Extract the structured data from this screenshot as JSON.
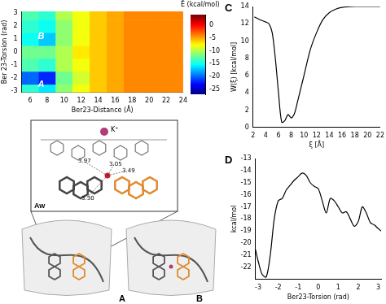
{
  "chart_data": [
    {
      "type": "heatmap",
      "x_label": "Ber23-Distance (Å)",
      "y_label": "Ber 23-Torsion (rad)",
      "xlim": [
        5,
        24
      ],
      "xticks": [
        6,
        8,
        10,
        12,
        14,
        16,
        18,
        20,
        22,
        24
      ],
      "ylim": [
        -3.14,
        3.14
      ],
      "yticks": [
        -3,
        -2,
        -1,
        0,
        1,
        2,
        3
      ],
      "x": [
        6,
        8,
        10,
        12,
        14,
        16,
        18,
        20,
        22,
        24
      ],
      "y": [
        -3,
        -2,
        -1,
        0,
        1,
        2,
        3
      ],
      "cells": [
        [
          -14,
          -16,
          -11,
          -8,
          -6,
          -5,
          -4,
          -4,
          -4,
          -4
        ],
        [
          -20,
          -22,
          -12,
          -9,
          -6,
          -5,
          -4,
          -4,
          -4,
          -4
        ],
        [
          -13,
          -14,
          -10,
          -8,
          -6,
          -5,
          -4,
          -4,
          -4,
          -4
        ],
        [
          -12,
          -12,
          -10,
          -7,
          -6,
          -5,
          -4,
          -4,
          -4,
          -4
        ],
        [
          -15,
          -17,
          -11,
          -8,
          -6,
          -5,
          -4,
          -4,
          -4,
          -4
        ],
        [
          -14,
          -15,
          -11,
          -8,
          -6,
          -5,
          -4,
          -4,
          -4,
          -4
        ],
        [
          -13,
          -14,
          -10,
          -8,
          -6,
          -5,
          -4,
          -4,
          -4,
          -4
        ]
      ],
      "colorbar": {
        "label": "Ē (kcal/mol)",
        "range": [
          -27,
          4
        ],
        "ticks": [
          0,
          -5,
          -10,
          -15,
          -20,
          -25
        ]
      },
      "annotations": [
        {
          "text": "A",
          "x": 7.3,
          "y": -2.5
        },
        {
          "text": "B",
          "x": 7.3,
          "y": 1.2
        }
      ]
    },
    {
      "type": "line",
      "panel": "C",
      "x_label": "ξ [Å]",
      "y_label": "W(ξ) [kcal/mol]",
      "color": "#000000",
      "xlim": [
        2,
        22
      ],
      "xticks": [
        2,
        4,
        6,
        8,
        10,
        12,
        14,
        16,
        18,
        20,
        22
      ],
      "ylim": [
        0,
        14
      ],
      "yticks": [
        0,
        2,
        4,
        6,
        8,
        10,
        12,
        14
      ],
      "x": [
        2.2,
        3,
        4,
        4.5,
        5,
        5.5,
        6,
        6.5,
        7,
        7.5,
        8,
        8.5,
        9,
        9.5,
        10,
        11,
        12,
        13,
        14,
        15,
        16,
        18,
        20,
        22
      ],
      "values": [
        12.8,
        12.5,
        12.2,
        12,
        11,
        8,
        4,
        0.6,
        0.8,
        1.5,
        1.1,
        1.6,
        3,
        4.5,
        6,
        9,
        11,
        12.5,
        13.3,
        13.7,
        13.9,
        14,
        14,
        14
      ]
    },
    {
      "type": "line",
      "panel": "D",
      "x_label": "Ber23-Torsion (rad)",
      "y_label": "kcal/mol",
      "color": "#000000",
      "xlim": [
        -3.14,
        3.14
      ],
      "xticks": [
        -3,
        -2,
        -1,
        0,
        1,
        2,
        3
      ],
      "ylim": [
        -23,
        -13
      ],
      "yticks": [
        -22,
        -21,
        -20,
        -19,
        -18,
        -17,
        -16,
        -15,
        -14,
        -13
      ],
      "x": [
        -3.14,
        -3,
        -2.8,
        -2.6,
        -2.4,
        -2.2,
        -2,
        -1.8,
        -1.6,
        -1.4,
        -1.2,
        -1,
        -0.8,
        -0.6,
        -0.4,
        -0.2,
        0,
        0.2,
        0.4,
        0.6,
        0.8,
        1,
        1.2,
        1.4,
        1.6,
        1.8,
        2,
        2.2,
        2.4,
        2.6,
        2.8,
        3,
        3.14
      ],
      "values": [
        -20.5,
        -21.5,
        -22.6,
        -22.8,
        -21,
        -18,
        -16.5,
        -16.3,
        -15.6,
        -15.2,
        -14.8,
        -14.5,
        -14.2,
        -14.4,
        -15,
        -15.3,
        -15.5,
        -16.5,
        -17.5,
        -16.3,
        -16.5,
        -17,
        -17.5,
        -17.4,
        -18,
        -18.6,
        -18.2,
        -17,
        -17.5,
        -18.3,
        -18.5,
        -18.8,
        -19
      ]
    }
  ],
  "structure_panels": {
    "inset_label": "Aw",
    "ion": "K⁺",
    "distances": [
      "3.97",
      "3.05",
      "3.30",
      "3.49"
    ],
    "panel_labels": [
      "A",
      "B"
    ]
  }
}
